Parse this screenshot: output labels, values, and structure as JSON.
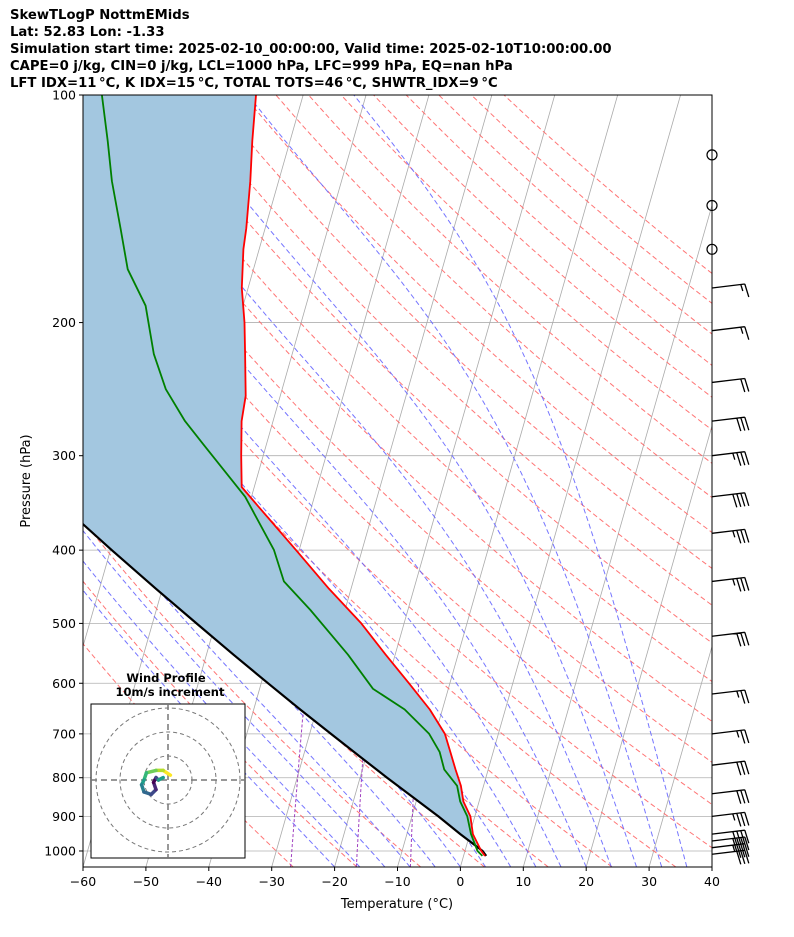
{
  "header": {
    "line1": "SkewTLogP NottmEMids",
    "line2": "Lat: 52.83   Lon: -1.33",
    "line3": "Simulation start time: 2025-02-10_00:00:00, Valid time: 2025-02-10T10:00:00.00",
    "line4": "CAPE=0 j/kg, CIN=0 j/kg, LCL=1000 hPa, LFC=999 hPa, EQ=nan hPa",
    "line5": "LFT IDX=11 °C, K IDX=15 °C, TOTAL TOTS=46 °C, SHWTR_IDX=9 °C"
  },
  "colors": {
    "temperature": "#ff0000",
    "dewpoint": "#008000",
    "parcel": "#000000",
    "fill": "#a3c7e0",
    "dry_adiabats": "#ff6666",
    "moist_adiabats": "#6666ff",
    "mixing_ratio": "#a040c0",
    "isotherms": "#aaaaaa"
  },
  "chart_data": {
    "type": "line",
    "title": "SkewTLogP NottmEMids",
    "xlabel": "Temperature (°C)",
    "ylabel": "Pressure (hPa)",
    "xlim": [
      -60,
      40
    ],
    "ylim": [
      1050,
      100
    ],
    "x_ticks": [
      -60,
      -50,
      -40,
      -30,
      -20,
      -10,
      0,
      10,
      20,
      30,
      40
    ],
    "x_tick_labels": [
      "−60",
      "−50",
      "−40",
      "−30",
      "−20",
      "−10",
      "0",
      "10",
      "20",
      "30",
      "40"
    ],
    "y_ticks": [
      100,
      200,
      300,
      400,
      500,
      600,
      700,
      800,
      900,
      1000
    ],
    "y_tick_labels": [
      "100",
      "200",
      "300",
      "400",
      "500",
      "600",
      "700",
      "800",
      "900",
      "1000"
    ],
    "grid": true,
    "series": [
      {
        "name": "Temperature",
        "pressure": [
          1015,
          1000,
          950,
          900,
          860,
          820,
          780,
          740,
          700,
          650,
          600,
          550,
          500,
          450,
          400,
          350,
          330,
          300,
          270,
          250,
          220,
          200,
          180,
          160,
          150,
          130,
          115,
          100
        ],
        "temperature": [
          3.4,
          2.6,
          0.5,
          -0.7,
          -2.5,
          -3.6,
          -5.2,
          -6.8,
          -8.5,
          -12.0,
          -16.5,
          -21.5,
          -26.8,
          -33.5,
          -40.5,
          -48.5,
          -52.0,
          -53.5,
          -55.0,
          -55.5,
          -57.5,
          -59.0,
          -61.0,
          -62.5,
          -63.0,
          -64.5,
          -66.0,
          -67.5
        ]
      },
      {
        "name": "Dewpoint",
        "pressure": [
          1015,
          1000,
          950,
          900,
          860,
          820,
          780,
          740,
          700,
          650,
          610,
          550,
          480,
          440,
          400,
          340,
          290,
          270,
          245,
          220,
          190,
          170,
          150,
          130,
          115,
          100
        ],
        "dewpoint": [
          3.0,
          2.0,
          0.2,
          -1.2,
          -3.0,
          -4.2,
          -7.0,
          -8.5,
          -11.0,
          -16.0,
          -22.0,
          -27.5,
          -35.5,
          -41.0,
          -44.0,
          -51.0,
          -60.0,
          -64.0,
          -68.5,
          -72.0,
          -75.5,
          -80.0,
          -83.0,
          -86.5,
          -89.0,
          -92.0
        ]
      },
      {
        "name": "Parcel profile",
        "pressure": [
          1015,
          1000,
          950,
          900,
          850,
          800,
          750,
          700,
          650,
          600,
          550,
          500,
          450,
          400,
          350,
          300,
          250,
          200,
          150,
          100
        ],
        "temperature": [
          3.6,
          2.8,
          -1.5,
          -5.8,
          -10.6,
          -15.7,
          -21.0,
          -26.6,
          -32.6,
          -38.9,
          -45.7,
          -53.0,
          -61.0,
          -69.8,
          -79.5,
          -90.5,
          -103.0,
          -117.6,
          -135.5,
          -159.0
        ]
      }
    ],
    "wind_barbs": [
      {
        "pressure": 120,
        "speed_kt": 0
      },
      {
        "pressure": 140,
        "speed_kt": 0
      },
      {
        "pressure": 160,
        "speed_kt": 0
      },
      {
        "pressure": 180,
        "speed_kt": 15
      },
      {
        "pressure": 205,
        "speed_kt": 15
      },
      {
        "pressure": 240,
        "speed_kt": 20
      },
      {
        "pressure": 270,
        "speed_kt": 30
      },
      {
        "pressure": 300,
        "speed_kt": 35
      },
      {
        "pressure": 340,
        "speed_kt": 40
      },
      {
        "pressure": 380,
        "speed_kt": 35
      },
      {
        "pressure": 440,
        "speed_kt": 35
      },
      {
        "pressure": 520,
        "speed_kt": 30
      },
      {
        "pressure": 620,
        "speed_kt": 25
      },
      {
        "pressure": 700,
        "speed_kt": 25
      },
      {
        "pressure": 770,
        "speed_kt": 30
      },
      {
        "pressure": 840,
        "speed_kt": 30
      },
      {
        "pressure": 900,
        "speed_kt": 35
      },
      {
        "pressure": 950,
        "speed_kt": 40
      },
      {
        "pressure": 970,
        "speed_kt": 40
      },
      {
        "pressure": 990,
        "speed_kt": 35
      },
      {
        "pressure": 1010,
        "speed_kt": 30
      }
    ],
    "hodograph": {
      "title_line1": "Wind Profile",
      "title_line2": "10m/s increment",
      "ring_increment_ms": 10,
      "points_ms": [
        [
          1,
          2
        ],
        [
          -2,
          4
        ],
        [
          -5,
          4
        ],
        [
          -9,
          3
        ],
        [
          -10,
          0
        ],
        [
          -11,
          -2
        ],
        [
          -10,
          -5
        ],
        [
          -7,
          -6
        ],
        [
          -5,
          -4
        ],
        [
          -6,
          -1
        ],
        [
          -5,
          1
        ],
        [
          -4,
          0
        ],
        [
          -2,
          1
        ]
      ]
    }
  }
}
